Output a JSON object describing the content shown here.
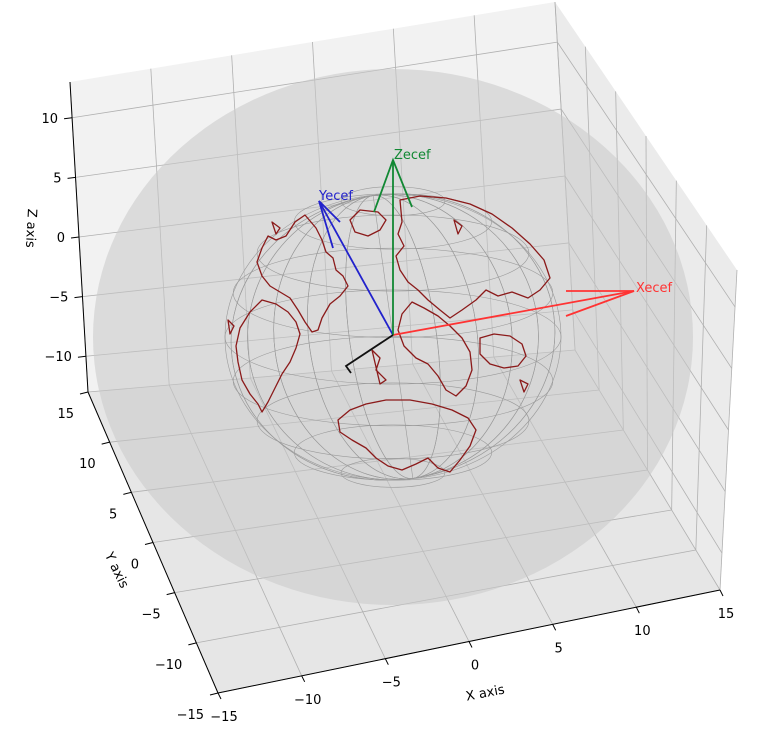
{
  "chart_data": {
    "type": "3d-surface-with-vectors",
    "xlabel": "X axis",
    "ylabel": "Y axis",
    "zlabel": "Z axis",
    "xlim": [
      -15,
      15
    ],
    "ylim": [
      -15,
      15
    ],
    "zlim": [
      -13,
      13
    ],
    "x_ticks": [
      -15,
      -10,
      -5,
      0,
      5,
      10,
      15
    ],
    "y_ticks": [
      -15,
      -10,
      -5,
      0,
      5,
      10,
      15
    ],
    "z_ticks": [
      -10,
      -5,
      0,
      5,
      10
    ],
    "grid": true,
    "surfaces": [
      {
        "shape": "sphere",
        "radius": 13,
        "center": [
          0,
          0,
          0
        ],
        "color": "#c8c8c8"
      },
      {
        "shape": "wireframe-sphere",
        "radius": 6.4,
        "center": [
          0,
          0,
          0
        ],
        "color": "#999999"
      }
    ],
    "coastline_color": "#8b1a1a",
    "vectors": [
      {
        "label": "Xecef",
        "color": "#ff3333",
        "direction": [
          1,
          0,
          0
        ]
      },
      {
        "label": "Yecef",
        "color": "#2222cc",
        "direction": [
          0,
          1,
          0
        ]
      },
      {
        "label": "Zecef",
        "color": "#118833",
        "direction": [
          0,
          0,
          1
        ]
      }
    ],
    "origin_marker_color": "#111111"
  }
}
